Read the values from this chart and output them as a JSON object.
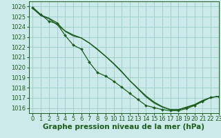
{
  "background_color": "#cceaea",
  "grid_color": "#99cccc",
  "line_color": "#1a5c1a",
  "marker_color": "#1a5c1a",
  "xlabel": "Graphe pression niveau de la mer (hPa)",
  "xlabel_fontsize": 7.5,
  "tick_fontsize": 6,
  "xlim": [
    -0.5,
    23
  ],
  "ylim": [
    1015.5,
    1026.5
  ],
  "yticks": [
    1016,
    1017,
    1018,
    1019,
    1020,
    1021,
    1022,
    1023,
    1024,
    1025,
    1026
  ],
  "xticks": [
    0,
    1,
    2,
    3,
    4,
    5,
    6,
    7,
    8,
    9,
    10,
    11,
    12,
    13,
    14,
    15,
    16,
    17,
    18,
    19,
    20,
    21,
    22,
    23
  ],
  "series": [
    {
      "y": [
        1025.8,
        1025.1,
        1024.8,
        1024.2,
        1023.6,
        1023.2,
        1022.9,
        1022.4,
        1021.8,
        1021.1,
        1020.4,
        1019.6,
        1018.7,
        1017.9,
        1017.1,
        1016.5,
        1016.1,
        1015.85,
        1015.85,
        1016.1,
        1016.35,
        1016.75,
        1017.05,
        1017.15
      ],
      "marker": false,
      "linewidth": 0.9
    },
    {
      "y": [
        1025.9,
        1025.15,
        1024.85,
        1024.4,
        1023.55,
        1023.1,
        1022.9,
        1022.4,
        1021.75,
        1021.1,
        1020.35,
        1019.55,
        1018.7,
        1017.95,
        1017.2,
        1016.6,
        1016.15,
        1015.85,
        1015.85,
        1016.05,
        1016.3,
        1016.7,
        1017.05,
        1017.15
      ],
      "marker": false,
      "linewidth": 0.9
    },
    {
      "y": [
        1025.9,
        1025.2,
        1024.55,
        1024.3,
        1023.15,
        1022.2,
        1021.8,
        1020.5,
        1019.5,
        1019.15,
        1018.65,
        1018.05,
        1017.45,
        1016.85,
        1016.25,
        1016.05,
        1015.85,
        1015.75,
        1015.75,
        1015.95,
        1016.25,
        1016.65,
        1017.05,
        1017.15
      ],
      "marker": true,
      "linewidth": 0.9
    }
  ]
}
